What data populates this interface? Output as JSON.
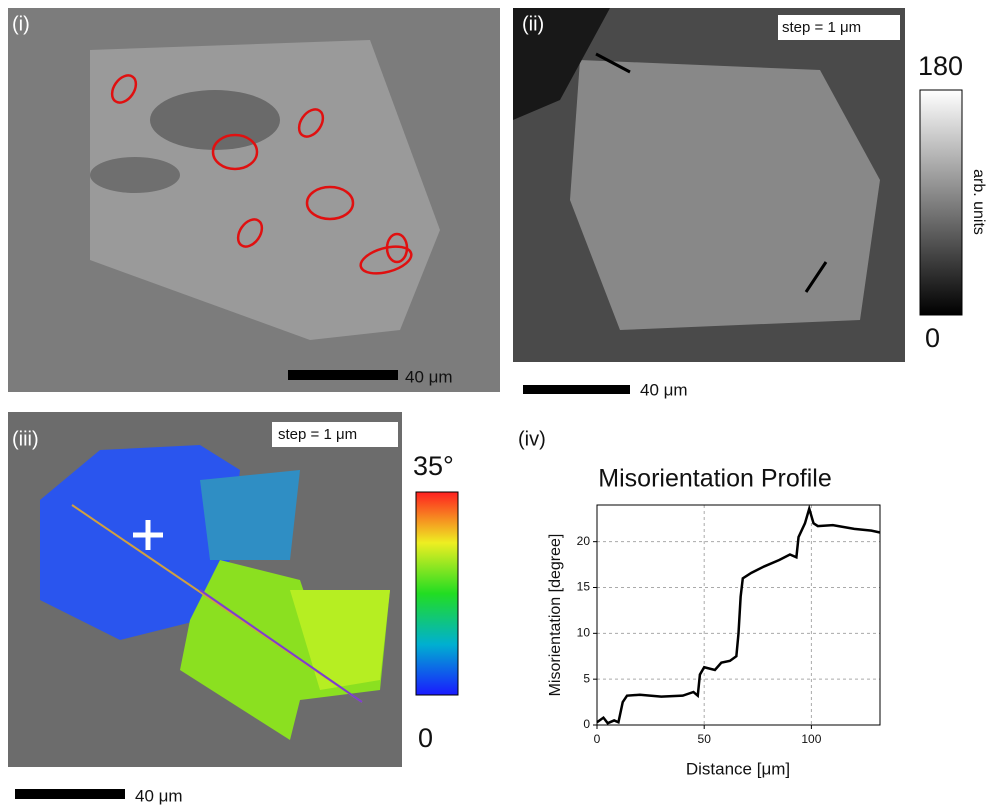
{
  "panels": [
    {
      "label": "(i)",
      "scale_bar": "40 μm"
    },
    {
      "label": "(ii)",
      "step": "step = 1 μm",
      "scale_bar": "40 μm",
      "colorbar": {
        "max": 180,
        "min": 0,
        "label": "arb. units"
      }
    },
    {
      "label": "(iii)",
      "step": "step = 1 μm",
      "scale_bar": "40 μm",
      "colorbar": {
        "max": {
          "value": 35,
          "label": "35°"
        },
        "min": 0
      }
    }
  ],
  "chart_data": {
    "type": "line",
    "panel_label": "(iv)",
    "title": "Misorientation Profile",
    "x_label": "Distance [μm]",
    "y_label": "Misorientation [degree]",
    "x": [
      0,
      3,
      5,
      8,
      10,
      12,
      14,
      20,
      30,
      40,
      45,
      47,
      48,
      50,
      55,
      58,
      62,
      65,
      66,
      67,
      68,
      72,
      78,
      85,
      90,
      93,
      94,
      97,
      99,
      101,
      103,
      110,
      120,
      128,
      132
    ],
    "series": [
      {
        "color": "#000000",
        "values": [
          0.3,
          0.8,
          0.2,
          0.5,
          0.3,
          2.5,
          3.2,
          3.3,
          3.1,
          3.2,
          3.6,
          3.2,
          5.5,
          6.3,
          6.0,
          6.8,
          7.0,
          7.5,
          10,
          14,
          16,
          16.6,
          17.3,
          18,
          18.6,
          18.3,
          20.5,
          22,
          23.6,
          22,
          21.7,
          21.8,
          21.4,
          21.2,
          21.0
        ]
      }
    ],
    "xlim": [
      0,
      132
    ],
    "ylim": [
      0,
      24
    ],
    "xticks": [
      0,
      50,
      100
    ],
    "yticks": [
      0,
      5,
      10,
      15,
      20
    ],
    "grid": true
  }
}
